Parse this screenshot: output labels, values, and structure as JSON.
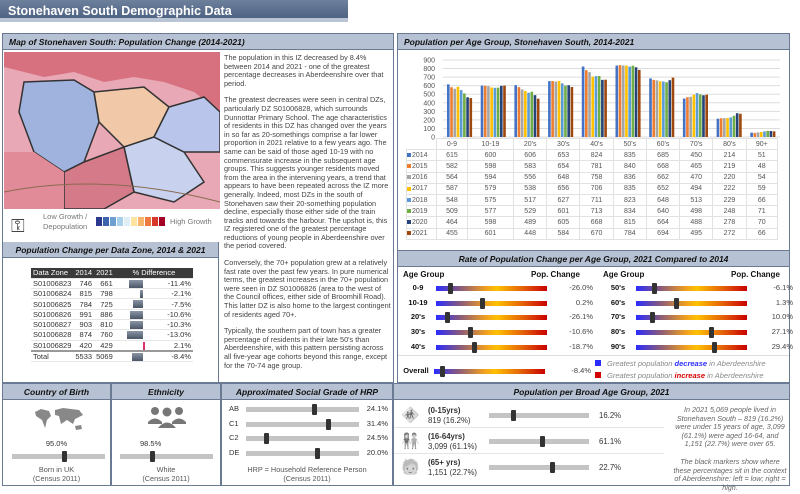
{
  "title": "Stonehaven South Demographic Data",
  "map_panel": {
    "title": "Map of Stonehaven South: Population Change (2014-2021)",
    "legend_low": "Low Growth / Depopulation",
    "legend_high": "High Growth",
    "legend_colors": [
      "#2b3a8f",
      "#3e64b0",
      "#6d9fd0",
      "#a8d0e8",
      "#e0eef5",
      "#fde3a0",
      "#f9b66a",
      "#ef7a40",
      "#d8372a",
      "#a50026"
    ]
  },
  "narrative": {
    "p1": "The population in this IZ decreased by 8.4% between 2014 and 2021 - one of the greatest percentage decreases in Aberdeenshire over that period.",
    "p2": "The greatest decreases were seen in central DZs, particularly DZ S01006828, which surrounds Dunnottar Primary School.  The age characteristics of residents in this DZ has changed over the years in so far as 20-somethings comprise a far lower proportion in 2021 relative to a few years ago.  The same can be said of those aged 10-19 with no commensurate increase in the subsequent age groups.  This suggests younger residents moved from the area in the intervening years, a trend that appears to have been repeated across the IZ more generally.  Indeed, most DZs in the south of Stonehaven saw their 20-something population decline, especially those either side of the train tracks and towards the harbour.  The upshot is, this IZ registered one of the greatest percentage reductions of young people in Aberdeenshire over the period covered.",
    "p3": "Conversely, the 70+ population grew at a relatively fast rate over the past few years.  In pure numerical terms, the greatest increases in the 70+ population were seen in DZ S01006826 (area to the west of the Council offices, either side of Broomhill Road).  This latter DZ is also home to the largest contingent of residents aged 70+.",
    "p4": "Typically, the southern part of town has a greater percentage of residents in their late 50's than Aberdeenshire, with this pattern persisting across all five-year age cohorts beyond this range, except for the 70-74 age group."
  },
  "datazone": {
    "title": "Population Change per Data Zone, 2014 & 2021",
    "headers": [
      "Data Zone",
      "2014",
      "2021",
      "% Difference"
    ],
    "rows": [
      [
        "S01006823",
        "746",
        "661",
        "-11.4%",
        -11.4
      ],
      [
        "S01006824",
        "815",
        "798",
        "-2.1%",
        -2.1
      ],
      [
        "S01006825",
        "784",
        "725",
        "-7.5%",
        -7.5
      ],
      [
        "S01006826",
        "991",
        "886",
        "-10.6%",
        -10.6
      ],
      [
        "S01006827",
        "903",
        "810",
        "-10.3%",
        -10.3
      ],
      [
        "S01006828",
        "874",
        "760",
        "-13.0%",
        -13.0
      ],
      [
        "S01006829",
        "420",
        "429",
        "2.1%",
        2.1
      ]
    ],
    "total": [
      "Total",
      "5533",
      "5069",
      "-8.4%",
      -8.4
    ]
  },
  "chart_data": {
    "type": "bar",
    "title": "Population per Age Group, Stonehaven South, 2014-2021",
    "categories": [
      "0-9",
      "10-19",
      "20's",
      "30's",
      "40's",
      "50's",
      "60's",
      "70's",
      "80's",
      "90+"
    ],
    "ylim": [
      0,
      900
    ],
    "yticks": [
      "0",
      "100",
      "200",
      "300",
      "400",
      "500",
      "600",
      "700",
      "800",
      "900"
    ],
    "grid": true,
    "legend": "table-below",
    "series": [
      {
        "name": "2014",
        "color": "#4472c4",
        "values": [
          615,
          600,
          606,
          653,
          824,
          835,
          685,
          450,
          214,
          51
        ]
      },
      {
        "name": "2015",
        "color": "#ed7d31",
        "values": [
          582,
          598,
          583,
          654,
          781,
          840,
          668,
          465,
          219,
          48
        ]
      },
      {
        "name": "2016",
        "color": "#a5a5a5",
        "values": [
          564,
          594,
          556,
          648,
          758,
          836,
          662,
          470,
          220,
          54
        ]
      },
      {
        "name": "2017",
        "color": "#ffc000",
        "values": [
          587,
          579,
          538,
          656,
          706,
          835,
          652,
          494,
          222,
          59
        ]
      },
      {
        "name": "2018",
        "color": "#5b9bd5",
        "values": [
          548,
          575,
          517,
          627,
          711,
          823,
          648,
          513,
          229,
          66
        ]
      },
      {
        "name": "2019",
        "color": "#70ad47",
        "values": [
          509,
          577,
          529,
          601,
          713,
          834,
          640,
          498,
          248,
          71
        ]
      },
      {
        "name": "2020",
        "color": "#264478",
        "values": [
          464,
          598,
          489,
          605,
          668,
          815,
          664,
          488,
          278,
          70
        ]
      },
      {
        "name": "2021",
        "color": "#9e480e",
        "values": [
          455,
          601,
          448,
          584,
          670,
          784,
          694,
          495,
          272,
          66
        ]
      }
    ]
  },
  "rate": {
    "title": "Rate of Population Change per Age Group, 2021 Compared to 2014",
    "col_age": "Age Group",
    "col_change": "Pop. Change",
    "left": [
      {
        "label": "0-9",
        "value": "-26.0%",
        "pos": 0.13
      },
      {
        "label": "10-19",
        "value": "0.2%",
        "pos": 0.41
      },
      {
        "label": "20's",
        "value": "-26.1%",
        "pos": 0.1
      },
      {
        "label": "30's",
        "value": "-10.6%",
        "pos": 0.31
      },
      {
        "label": "40's",
        "value": "-18.7%",
        "pos": 0.34
      }
    ],
    "right": [
      {
        "label": "50's",
        "value": "-6.1%",
        "pos": 0.16
      },
      {
        "label": "60's",
        "value": "1.3%",
        "pos": 0.36
      },
      {
        "label": "70's",
        "value": "10.0%",
        "pos": 0.14
      },
      {
        "label": "80's",
        "value": "27.1%",
        "pos": 0.68
      },
      {
        "label": "90's",
        "value": "29.4%",
        "pos": 0.7
      }
    ],
    "overall": {
      "label": "Overall",
      "value": "-8.4%",
      "pos": 0.07
    },
    "legend_dec": [
      "Greatest population ",
      "decrease",
      " in Aberdeenshire"
    ],
    "legend_inc": [
      "Greatest population ",
      "increase",
      " in Aberdeenshire"
    ],
    "dec_color": "#2a2cff",
    "inc_color": "#d40000"
  },
  "birth": {
    "title": "Country of Birth",
    "value": "95.0%",
    "pos": 0.56,
    "label1": "Born in UK",
    "label2": "(Census 2011)"
  },
  "ethnicity": {
    "title": "Ethnicity",
    "value": "98.5%",
    "pos": 0.34,
    "label1": "White",
    "label2": "(Census 2011)"
  },
  "social": {
    "title": "Approximated Social Grade of HRP",
    "rows": [
      {
        "label": "AB",
        "value": "24.1%",
        "pos": 0.6
      },
      {
        "label": "C1",
        "value": "31.4%",
        "pos": 0.73
      },
      {
        "label": "C2",
        "value": "24.5%",
        "pos": 0.18
      },
      {
        "label": "DE",
        "value": "20.0%",
        "pos": 0.63
      }
    ],
    "note1": "HRP = Household Reference Person",
    "note2": "(Census 2011)"
  },
  "broad": {
    "title": "Population per Broad Age Group, 2021",
    "rows": [
      {
        "group": "(0-15yrs)",
        "count": "819 (16.2%)",
        "value": "16.2%",
        "pos": 0.24
      },
      {
        "group": "(16-64yrs)",
        "count": "3,099 (61.1%)",
        "value": "61.1%",
        "pos": 0.53
      },
      {
        "group": "(65+ yrs)",
        "count": "1,151 (22.7%)",
        "value": "22.7%",
        "pos": 0.63
      }
    ],
    "note1": "In 2021 5,069 people lived in Stonehaven South – 819 (16.2%) were under 15 years of age, 3,099 (61.1%) were aged 16-64, and 1,151 (22.7%) were over 65.",
    "note2": "The black markers show where these percentages sit in the context of Aberdeenshire:  left = low; right = high."
  }
}
